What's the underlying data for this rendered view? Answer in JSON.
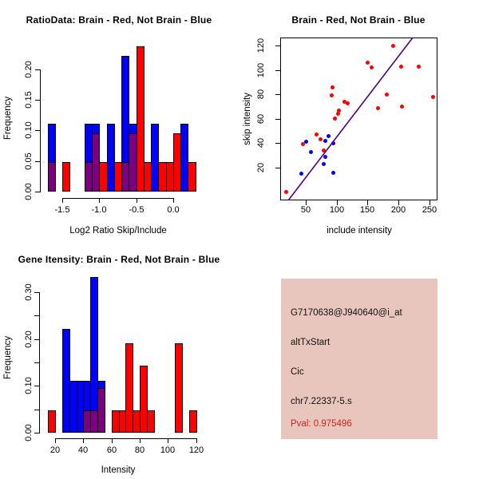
{
  "colors": {
    "brain_red": "#ff0000",
    "not_brain_blue": "#0000ff",
    "overlap_purple": "#7a0080",
    "fit_line": "#4b0082",
    "axis": "#000000",
    "info_box_bg": "#e9c6bd",
    "pval_text": "#cc2222"
  },
  "chart_data": [
    {
      "id": "ratio-histogram",
      "type": "bar",
      "title": "RatioData: Brain - Red, Not Brain - Blue",
      "xlabel": "Log2 Ratio Skip/Include",
      "ylabel": "Frequency",
      "xlim": [
        -1.8,
        0.35
      ],
      "ylim": [
        0,
        0.25
      ],
      "bin_width": 0.1,
      "x_ticks": [
        -1.5,
        -1.0,
        -0.5,
        0.0
      ],
      "x_tick_labels": [
        "-1.5",
        "-1.0",
        "-0.5",
        "0.0"
      ],
      "y_ticks": [
        0,
        0.05,
        0.1,
        0.15,
        0.2
      ],
      "y_tick_labels": [
        "0.00",
        "0.05",
        "0.10",
        "0.15",
        "0.20"
      ],
      "series": [
        {
          "name": "Brain",
          "color_key": "brain_red",
          "bins": [
            [
              -1.7,
              0.048
            ],
            [
              -1.5,
              0.048
            ],
            [
              -1.2,
              0.048
            ],
            [
              -1.1,
              0.095
            ],
            [
              -1.0,
              0.048
            ],
            [
              -0.8,
              0.048
            ],
            [
              -0.7,
              0.048
            ],
            [
              -0.6,
              0.095
            ],
            [
              -0.5,
              0.238
            ],
            [
              -0.4,
              0.048
            ],
            [
              -0.2,
              0.048
            ],
            [
              -0.1,
              0.048
            ],
            [
              0.0,
              0.095
            ],
            [
              0.2,
              0.048
            ]
          ]
        },
        {
          "name": "Not Brain",
          "color_key": "not_brain_blue",
          "bins": [
            [
              -1.7,
              0.111
            ],
            [
              -1.2,
              0.111
            ],
            [
              -1.1,
              0.111
            ],
            [
              -0.9,
              0.111
            ],
            [
              -0.7,
              0.222
            ],
            [
              -0.6,
              0.111
            ],
            [
              -0.3,
              0.111
            ],
            [
              0.1,
              0.111
            ]
          ]
        }
      ]
    },
    {
      "id": "intensity-scatter",
      "type": "scatter",
      "title": "Brain - Red, Not Brain - Blue",
      "xlabel": "include intensity",
      "ylabel": "skip intensity",
      "xlim": [
        8,
        264
      ],
      "ylim": [
        -7,
        126.5
      ],
      "x_ticks": [
        50,
        100,
        150,
        200,
        250
      ],
      "x_tick_labels": [
        "50",
        "100",
        "150",
        "200",
        "250"
      ],
      "y_ticks": [
        20,
        40,
        60,
        80,
        100,
        120
      ],
      "y_tick_labels": [
        "20",
        "40",
        "60",
        "80",
        "100",
        "120"
      ],
      "series": [
        {
          "name": "Brain",
          "color_key": "brain_red",
          "points": [
            [
              18,
              0
            ],
            [
              45,
              39
            ],
            [
              67,
              47
            ],
            [
              73,
              43
            ],
            [
              79,
              34
            ],
            [
              93,
              86
            ],
            [
              92,
              79
            ],
            [
              97,
              60
            ],
            [
              102,
              64
            ],
            [
              104,
              67
            ],
            [
              112,
              74
            ],
            [
              117,
              73
            ],
            [
              150,
              106
            ],
            [
              156,
              102
            ],
            [
              167,
              69
            ],
            [
              181,
              80
            ],
            [
              192,
              120
            ],
            [
              205,
              103
            ],
            [
              206,
              70
            ],
            [
              233,
              103
            ],
            [
              256,
              78
            ]
          ]
        },
        {
          "name": "Not Brain",
          "color_key": "not_brain_blue",
          "points": [
            [
              43,
              15
            ],
            [
              50,
              41
            ],
            [
              58,
              33
            ],
            [
              79,
              23
            ],
            [
              81,
              42
            ],
            [
              82,
              29
            ],
            [
              87,
              46
            ],
            [
              94,
              40
            ],
            [
              94,
              16
            ]
          ]
        }
      ],
      "fit_line": {
        "from": [
          21,
          -7
        ],
        "to": [
          223,
          126.5
        ]
      }
    },
    {
      "id": "gene-intensity-histogram",
      "type": "bar",
      "title": "Gene Itensity: Brain - Red, Not Brain - Blue",
      "xlabel": "Intensity",
      "ylabel": "Frequency",
      "xlim": [
        13,
        125
      ],
      "ylim": [
        0,
        0.35
      ],
      "bin_width": 5,
      "x_ticks": [
        20,
        40,
        60,
        80,
        100,
        120
      ],
      "x_tick_labels": [
        "20",
        "40",
        "60",
        "80",
        "100",
        "120"
      ],
      "y_ticks": [
        0,
        0.05,
        0.1,
        0.15,
        0.2,
        0.25,
        0.3
      ],
      "y_tick_labels": [
        "0.00",
        "",
        "0.10",
        "",
        "0.20",
        "",
        "0.30"
      ],
      "series": [
        {
          "name": "Brain",
          "color_key": "brain_red",
          "bins": [
            [
              15,
              0.048
            ],
            [
              40,
              0.048
            ],
            [
              45,
              0.048
            ],
            [
              50,
              0.095
            ],
            [
              60,
              0.048
            ],
            [
              65,
              0.048
            ],
            [
              70,
              0.19
            ],
            [
              75,
              0.048
            ],
            [
              80,
              0.143
            ],
            [
              85,
              0.048
            ],
            [
              105,
              0.19
            ],
            [
              115,
              0.048
            ]
          ]
        },
        {
          "name": "Not Brain",
          "color_key": "not_brain_blue",
          "bins": [
            [
              25,
              0.222
            ],
            [
              30,
              0.111
            ],
            [
              35,
              0.111
            ],
            [
              40,
              0.111
            ],
            [
              45,
              0.333
            ],
            [
              50,
              0.111
            ]
          ]
        }
      ]
    }
  ],
  "info_panel": {
    "lines": [
      "G7170638@J940640@i_at",
      "altTxStart",
      "Cic",
      "chr7.22337-5.s"
    ],
    "pval": "Pval: 0.975496"
  }
}
